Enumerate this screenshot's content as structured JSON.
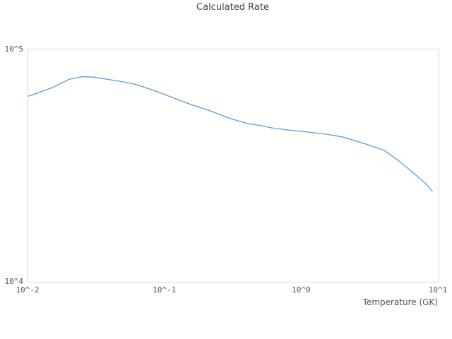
{
  "chart": {
    "title": "Calculated Rate",
    "xlabel": "Temperature (GK)",
    "colors": {
      "line": "#5b9bd5",
      "frame": "#d9d9d9",
      "title_text": "#444444",
      "tick_text": "#555555",
      "background": "#ffffff"
    }
  },
  "chart_data": {
    "type": "line",
    "title": "Calculated Rate",
    "xlabel": "Temperature (GK)",
    "ylabel": "",
    "x_scale": "log",
    "y_scale": "log",
    "xlim": [
      0.01,
      10
    ],
    "ylim": [
      10000,
      100000
    ],
    "grid": false,
    "legend": false,
    "x_ticks": [
      {
        "label": "10^-2",
        "value": 0.01
      },
      {
        "label": "10^-1",
        "value": 0.1
      },
      {
        "label": "10^0",
        "value": 1
      },
      {
        "label": "10^1",
        "value": 10
      }
    ],
    "y_ticks": [
      {
        "label": "10^4",
        "value": 10000
      },
      {
        "label": "10^5",
        "value": 100000
      }
    ],
    "series": [
      {
        "name": "Calculated Rate",
        "x": [
          0.01,
          0.015,
          0.02,
          0.025,
          0.03,
          0.04,
          0.05,
          0.06,
          0.08,
          0.1,
          0.15,
          0.2,
          0.3,
          0.4,
          0.5,
          0.6,
          0.8,
          1.0,
          1.5,
          2.0,
          3.0,
          4.0,
          5.0,
          6.0,
          8.0,
          9.0
        ],
        "y": [
          62900,
          68500,
          74500,
          76400,
          76000,
          74000,
          72400,
          70900,
          67100,
          63900,
          58300,
          55200,
          50400,
          48000,
          47000,
          46000,
          45000,
          44400,
          43200,
          42000,
          39000,
          36800,
          33500,
          30700,
          26600,
          24500
        ]
      }
    ]
  }
}
